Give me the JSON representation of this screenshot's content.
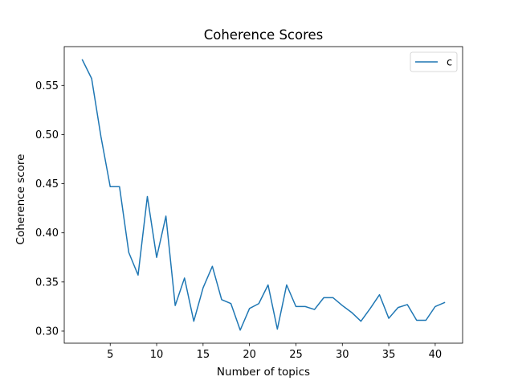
{
  "chart_data": {
    "type": "line",
    "title": "Coherence Scores",
    "xlabel": "Number of topics",
    "ylabel": "Coherence score",
    "xlim": [
      0.05,
      42.95
    ],
    "ylim": [
      0.2877,
      0.5895
    ],
    "xticks": [
      5,
      10,
      15,
      20,
      25,
      30,
      35,
      40
    ],
    "xtick_labels": [
      "5",
      "10",
      "15",
      "20",
      "25",
      "30",
      "35",
      "40"
    ],
    "yticks": [
      0.3,
      0.35,
      0.4,
      0.45,
      0.5,
      0.55
    ],
    "ytick_labels": [
      "0.30",
      "0.35",
      "0.40",
      "0.45",
      "0.50",
      "0.55"
    ],
    "grid": false,
    "legend_position": "top-right",
    "series": [
      {
        "name": "c",
        "color": "#1f77b4",
        "x": [
          2,
          3,
          4,
          5,
          6,
          7,
          8,
          9,
          10,
          11,
          12,
          13,
          14,
          15,
          16,
          17,
          18,
          19,
          20,
          21,
          22,
          23,
          24,
          25,
          26,
          27,
          28,
          29,
          30,
          31,
          32,
          33,
          34,
          35,
          36,
          37,
          38,
          39,
          40,
          41
        ],
        "y": [
          0.576,
          0.557,
          0.498,
          0.447,
          0.447,
          0.38,
          0.357,
          0.437,
          0.375,
          0.417,
          0.326,
          0.354,
          0.31,
          0.344,
          0.366,
          0.332,
          0.328,
          0.301,
          0.323,
          0.328,
          0.347,
          0.302,
          0.347,
          0.325,
          0.325,
          0.322,
          0.334,
          0.334,
          0.326,
          0.319,
          0.31,
          0.323,
          0.337,
          0.313,
          0.324,
          0.327,
          0.311,
          0.311,
          0.325,
          0.329
        ]
      }
    ]
  }
}
